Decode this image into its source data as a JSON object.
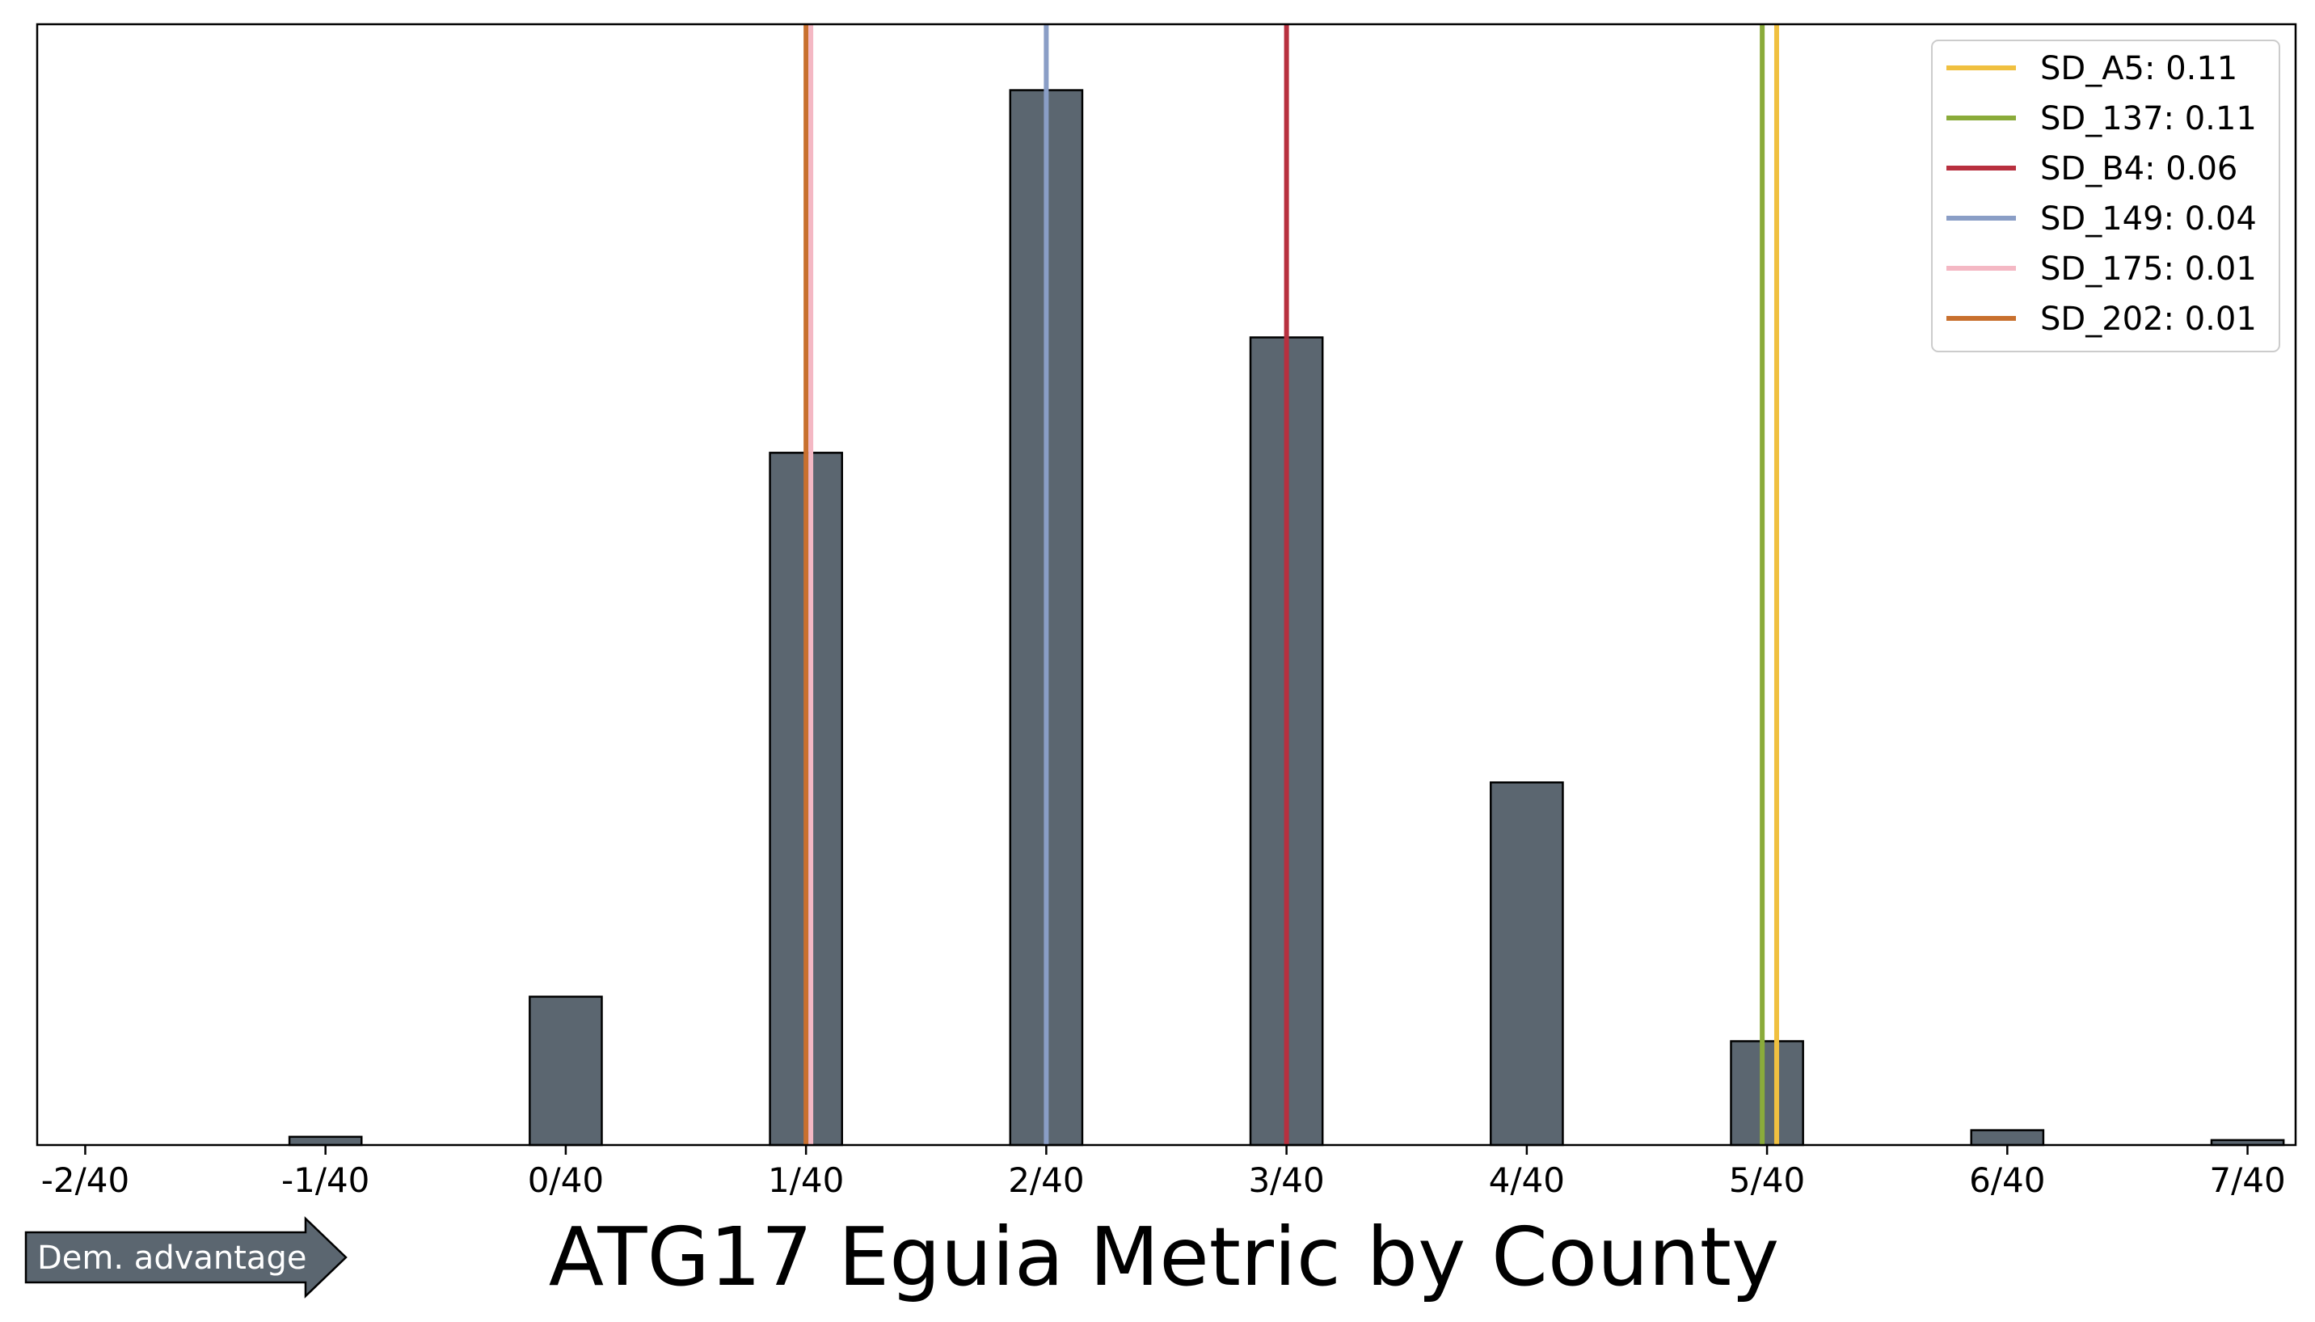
{
  "chart_data": {
    "type": "bar",
    "title": "ATG17 Eguia Metric by County",
    "xlabel": "",
    "ylabel": "",
    "xlim": [
      -0.055,
      0.18
    ],
    "ylim": [
      0,
      68
    ],
    "bin_width": 0.0075,
    "x_ticks": [
      -0.05,
      -0.025,
      0.0,
      0.025,
      0.05,
      0.075,
      0.1,
      0.125,
      0.15,
      0.175
    ],
    "x_tick_labels": [
      "-2/40",
      "-1/40",
      "0/40",
      "1/40",
      "2/40",
      "3/40",
      "4/40",
      "5/40",
      "6/40",
      "7/40"
    ],
    "bins": [
      {
        "x": -0.05,
        "count": 0
      },
      {
        "x": -0.0375,
        "count": 0
      },
      {
        "x": -0.025,
        "count": 0.5
      },
      {
        "x": -0.0125,
        "count": 0
      },
      {
        "x": 0.0,
        "count": 9
      },
      {
        "x": 0.0125,
        "count": 0
      },
      {
        "x": 0.025,
        "count": 42
      },
      {
        "x": 0.0375,
        "count": 0
      },
      {
        "x": 0.05,
        "count": 64
      },
      {
        "x": 0.0625,
        "count": 0
      },
      {
        "x": 0.075,
        "count": 49
      },
      {
        "x": 0.0875,
        "count": 0
      },
      {
        "x": 0.1,
        "count": 22
      },
      {
        "x": 0.1125,
        "count": 0
      },
      {
        "x": 0.125,
        "count": 6.3
      },
      {
        "x": 0.1375,
        "count": 0
      },
      {
        "x": 0.15,
        "count": 0.9
      },
      {
        "x": 0.1625,
        "count": 0
      },
      {
        "x": 0.175,
        "count": 0.3
      }
    ],
    "bar_color": "#5b6670",
    "reference_lines": [
      {
        "name": "SD_A5: 0.11",
        "x": 0.126,
        "color": "#f0c040"
      },
      {
        "name": "SD_137: 0.11",
        "x": 0.1245,
        "color": "#8aab3a"
      },
      {
        "name": "SD_B4: 0.06",
        "x": 0.075,
        "color": "#b8303f"
      },
      {
        "name": "SD_149: 0.04",
        "x": 0.05,
        "color": "#8a9ec6"
      },
      {
        "name": "SD_175: 0.01",
        "x": 0.0255,
        "color": "#f4b8c4"
      },
      {
        "name": "SD_202: 0.01",
        "x": 0.025,
        "color": "#c8702e"
      }
    ],
    "legend_position": "top-right",
    "grid": false
  },
  "badge": {
    "label": "Dem. advantage",
    "color": "#5b6670"
  }
}
